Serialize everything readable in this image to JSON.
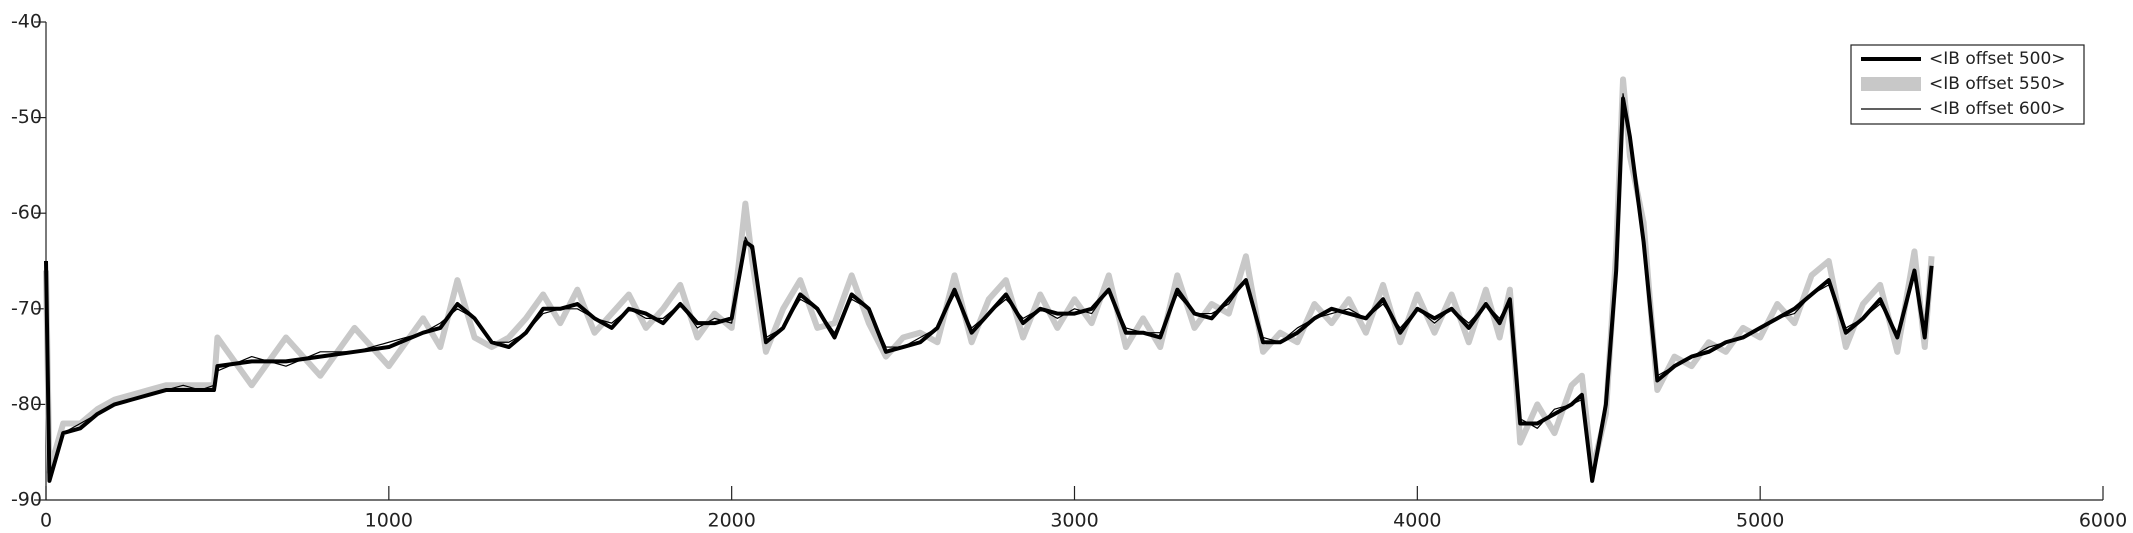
{
  "chart_data": {
    "type": "line",
    "x": [
      0,
      10,
      50,
      100,
      150,
      200,
      250,
      300,
      350,
      400,
      450,
      490,
      500,
      600,
      700,
      800,
      900,
      1000,
      1100,
      1150,
      1200,
      1250,
      1300,
      1350,
      1400,
      1450,
      1500,
      1550,
      1600,
      1650,
      1700,
      1750,
      1800,
      1850,
      1900,
      1950,
      2000,
      2040,
      2060,
      2100,
      2150,
      2200,
      2250,
      2300,
      2350,
      2400,
      2450,
      2500,
      2550,
      2600,
      2650,
      2700,
      2750,
      2800,
      2850,
      2900,
      2950,
      3000,
      3050,
      3100,
      3150,
      3200,
      3250,
      3300,
      3350,
      3400,
      3450,
      3500,
      3550,
      3600,
      3650,
      3700,
      3750,
      3800,
      3850,
      3900,
      3950,
      4000,
      4050,
      4100,
      4150,
      4200,
      4240,
      4270,
      4300,
      4350,
      4400,
      4450,
      4480,
      4510,
      4550,
      4580,
      4600,
      4620,
      4660,
      4700,
      4750,
      4800,
      4850,
      4900,
      4950,
      5000,
      5050,
      5100,
      5150,
      5200,
      5250,
      5300,
      5350,
      5400,
      5450,
      5480,
      5500
    ],
    "series": [
      {
        "name": "<IB offset 500>",
        "color": "#000000",
        "values": [
          -65,
          -88,
          -83,
          -82.5,
          -81,
          -80,
          -79.5,
          -79,
          -78.5,
          -78.5,
          -78.5,
          -78.5,
          -76,
          -75.5,
          -75.5,
          -75,
          -74.5,
          -74,
          -72.5,
          -72,
          -69.5,
          -71,
          -73.5,
          -74,
          -72.5,
          -70,
          -70,
          -69.5,
          -71,
          -72,
          -70,
          -70.5,
          -71.5,
          -69.5,
          -71.5,
          -71.5,
          -71,
          -63,
          -63.5,
          -73.5,
          -72,
          -68.5,
          -70,
          -73,
          -68.5,
          -70,
          -74.5,
          -74,
          -73.5,
          -72,
          -68,
          -72.5,
          -70.5,
          -68.5,
          -71.5,
          -70,
          -70.5,
          -70.5,
          -70,
          -68,
          -72.5,
          -72.5,
          -73,
          -68,
          -70.5,
          -71,
          -69,
          -67,
          -73.5,
          -73.5,
          -72.5,
          -71,
          -70,
          -70.5,
          -71,
          -69,
          -72.5,
          -70,
          -71,
          -70,
          -72,
          -69.5,
          -71.5,
          -69,
          -82,
          -82,
          -81,
          -80,
          -79,
          -88,
          -80,
          -66,
          -48,
          -52,
          -63,
          -77.5,
          -76,
          -75,
          -74.5,
          -73.5,
          -73,
          -72,
          -71,
          -70,
          -68.5,
          -67,
          -72.5,
          -71,
          -69,
          -73,
          -66,
          -73,
          -65.5
        ]
      },
      {
        "name": "<IB offset 550>",
        "color": "#c8c8c8",
        "values": [
          -66,
          -87,
          -82,
          -82,
          -80.5,
          -79.5,
          -79,
          -78.5,
          -78,
          -78,
          -78,
          -78,
          -73,
          -78,
          -73,
          -77,
          -72,
          -76,
          -71,
          -74,
          -67,
          -73,
          -74,
          -73,
          -71,
          -68.5,
          -71.5,
          -68,
          -72.5,
          -70.5,
          -68.5,
          -72,
          -70,
          -67.5,
          -73,
          -70.5,
          -72,
          -59,
          -65,
          -74.5,
          -70,
          -67,
          -72,
          -71.5,
          -66.5,
          -71.5,
          -75,
          -73,
          -72.5,
          -73.5,
          -66.5,
          -73.5,
          -69,
          -67,
          -73,
          -68.5,
          -72,
          -69,
          -71.5,
          -66.5,
          -74,
          -71,
          -74,
          -66.5,
          -72,
          -69.5,
          -70.5,
          -64.5,
          -74.5,
          -72.5,
          -73.5,
          -69.5,
          -71.5,
          -69,
          -72.5,
          -67.5,
          -73.5,
          -68.5,
          -72.5,
          -68.5,
          -73.5,
          -68,
          -73,
          -68,
          -84,
          -80,
          -83,
          -78,
          -77,
          -87,
          -81,
          -64,
          -46,
          -54,
          -61,
          -78.5,
          -75,
          -76,
          -73.5,
          -74.5,
          -72,
          -73,
          -69.5,
          -71.5,
          -66.5,
          -65,
          -74,
          -69.5,
          -67.5,
          -74.5,
          -64,
          -74,
          -64.5
        ]
      },
      {
        "name": "<IB offset 600>",
        "color": "#000000",
        "values": [
          -65.5,
          -87.5,
          -83,
          -82,
          -81,
          -80,
          -79.5,
          -79,
          -78.5,
          -78,
          -78.5,
          -78,
          -76.5,
          -75,
          -76,
          -74.5,
          -74.5,
          -73.5,
          -72.5,
          -71.5,
          -70,
          -71,
          -73.5,
          -73.5,
          -72.5,
          -70.5,
          -70,
          -70,
          -71,
          -71.5,
          -70,
          -71,
          -71,
          -69.5,
          -72,
          -71,
          -71.5,
          -62.5,
          -64,
          -73,
          -72,
          -69,
          -70,
          -72.5,
          -69,
          -70,
          -74,
          -74,
          -73,
          -72,
          -68.5,
          -72,
          -70.5,
          -69,
          -71,
          -70,
          -71,
          -70,
          -70.5,
          -68,
          -72,
          -72.5,
          -72.5,
          -68.5,
          -70.5,
          -70.5,
          -69.5,
          -67,
          -73,
          -73.5,
          -72,
          -71,
          -70.5,
          -70,
          -71,
          -69.5,
          -72,
          -70,
          -71.5,
          -70,
          -71.5,
          -69.5,
          -71,
          -69,
          -81.5,
          -82.5,
          -80.5,
          -80,
          -79.5,
          -87.5,
          -79.5,
          -66.5,
          -47.5,
          -52.5,
          -63.5,
          -77,
          -76,
          -75,
          -74,
          -73.5,
          -73,
          -72,
          -71,
          -70.5,
          -68.5,
          -67.5,
          -72,
          -71,
          -69.5,
          -72.5,
          -66.5,
          -72.5,
          -66
        ]
      }
    ],
    "xlim": [
      0,
      6000
    ],
    "xticks": [
      0,
      1000,
      2000,
      3000,
      4000,
      5000,
      6000
    ],
    "ylim": [
      -90,
      -40
    ],
    "yticks": [
      -90,
      -80,
      -70,
      -60,
      -50,
      -40
    ],
    "legend": "upper right"
  }
}
